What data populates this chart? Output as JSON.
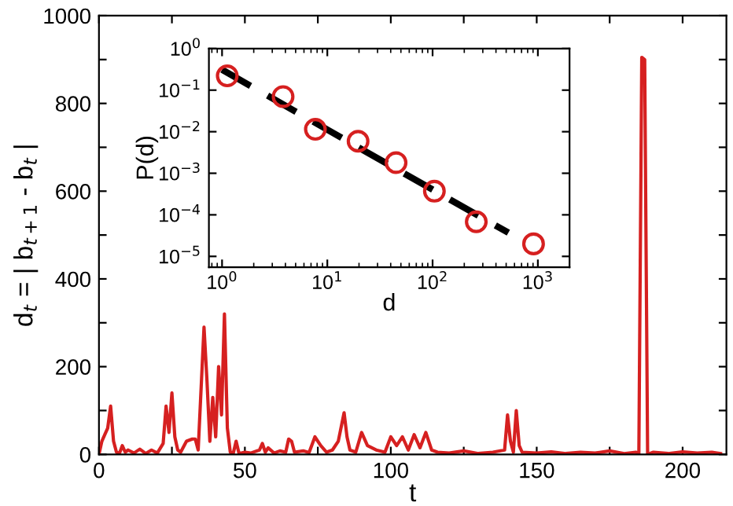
{
  "chart_data": [
    {
      "type": "line",
      "xlabel": "t",
      "ylabel": "d$_{t}$ = | b$_{t+1}$ - b$_{t}$ |",
      "xlim": [
        0,
        215
      ],
      "ylim": [
        0,
        1000
      ],
      "xticks": [
        0,
        {
          "value": 25,
          "label": null
        },
        50,
        {
          "value": 75,
          "label": null
        },
        100,
        {
          "value": 125,
          "label": null
        },
        150,
        {
          "value": 175,
          "label": null
        },
        200
      ],
      "yticks": [
        0,
        {
          "value": 100,
          "label": null
        },
        200,
        {
          "value": 300,
          "label": null
        },
        400,
        {
          "value": 500,
          "label": null
        },
        600,
        {
          "value": 700,
          "label": null
        },
        800,
        {
          "value": 900,
          "label": null
        },
        1000
      ],
      "grid": false,
      "legend": false,
      "marker": "none",
      "line_style": "solid",
      "series": [
        {
          "color": "#d62020",
          "x": [
            0,
            1,
            2,
            3,
            4,
            5,
            6,
            7,
            8,
            9,
            10,
            12,
            14,
            16,
            18,
            20,
            22,
            23,
            24,
            25,
            26,
            27,
            28,
            30,
            32,
            33,
            34,
            35,
            36,
            37,
            38,
            39,
            40,
            41,
            42,
            43,
            44,
            45,
            46,
            47,
            48,
            50,
            52,
            55,
            56,
            57,
            58,
            60,
            62,
            64,
            65,
            66,
            67,
            70,
            72,
            74,
            76,
            78,
            80,
            82,
            84,
            85,
            86,
            88,
            90,
            92,
            95,
            98,
            100,
            102,
            104,
            106,
            108,
            110,
            112,
            114,
            116,
            120,
            125,
            130,
            135,
            139,
            140,
            141,
            142,
            143,
            144,
            145,
            150,
            155,
            160,
            165,
            170,
            175,
            180,
            184,
            185,
            186,
            187,
            188,
            190,
            195,
            200,
            205,
            210,
            213
          ],
          "values": [
            0,
            30,
            45,
            60,
            110,
            30,
            5,
            2,
            20,
            5,
            10,
            3,
            12,
            2,
            10,
            3,
            25,
            110,
            50,
            140,
            40,
            10,
            5,
            30,
            35,
            35,
            10,
            150,
            290,
            170,
            30,
            130,
            40,
            200,
            90,
            320,
            60,
            5,
            2,
            30,
            2,
            5,
            3,
            10,
            25,
            5,
            15,
            3,
            8,
            5,
            35,
            30,
            5,
            8,
            4,
            40,
            20,
            5,
            10,
            30,
            95,
            40,
            10,
            5,
            50,
            20,
            10,
            5,
            40,
            20,
            40,
            10,
            45,
            15,
            50,
            10,
            5,
            3,
            8,
            2,
            5,
            10,
            90,
            30,
            5,
            100,
            20,
            5,
            3,
            6,
            2,
            5,
            3,
            8,
            2,
            5,
            0,
            905,
            900,
            0,
            5,
            2,
            6,
            3,
            5,
            2
          ]
        }
      ]
    },
    {
      "type": "scatter",
      "xlabel": "d",
      "ylabel": "P(d)",
      "log": "xy",
      "xlim": [
        0.75,
        2000
      ],
      "ylim": [
        5.5e-06,
        1
      ],
      "xticks": [
        {
          "value": 1,
          "label": "10$^{0}$"
        },
        {
          "value": 10,
          "label": "10$^{1}$"
        },
        {
          "value": 100,
          "label": "10$^{2}$"
        },
        {
          "value": 1000,
          "label": "10$^{3}$"
        }
      ],
      "yticks": [
        {
          "value": 1e-05,
          "label": "10$^{−5}$"
        },
        {
          "value": 0.0001,
          "label": "10$^{−4}$"
        },
        {
          "value": 0.001,
          "label": "10$^{−3}$"
        },
        {
          "value": 0.01,
          "label": "10$^{−2}$"
        },
        {
          "value": 0.1,
          "label": "10$^{−1}$"
        },
        {
          "value": 1,
          "label": "10$^{0}$"
        }
      ],
      "grid": false,
      "legend": false,
      "marker": "circle",
      "series": [
        {
          "color": "#d62020",
          "x": [
            1.12,
            3.8,
            7.7,
            19.6,
            45,
            104,
            260,
            910
          ],
          "values": [
            0.22,
            0.07,
            0.0114,
            0.0059,
            0.0018,
            0.00037,
            6.8e-05,
            2e-05
          ]
        },
        {
          "type": "line",
          "color": "#000000",
          "line_style": "dashed",
          "marker": "none",
          "x": [
            1,
            525
          ],
          "values": [
            0.31,
            3.7e-05
          ]
        }
      ]
    }
  ]
}
